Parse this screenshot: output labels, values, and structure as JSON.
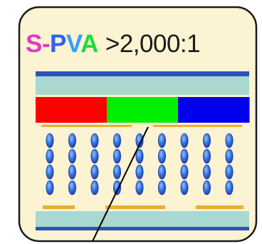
{
  "title": {
    "brand_chars": [
      {
        "char": "S",
        "color": "#e03cc0"
      },
      {
        "char": "-",
        "color": "#e03cc0"
      },
      {
        "char": "P",
        "color": "#2f63e8"
      },
      {
        "char": "V",
        "color": "#2fa0ff"
      },
      {
        "char": "A",
        "color": "#1fdc3a"
      }
    ],
    "ratio": ">2,000:1"
  },
  "colors": {
    "background": "#fcf3d3",
    "border": "#1a1a1a",
    "glass_band": "#a8d8d0",
    "stripe": "#2f52b8",
    "subpixel_red": "#ff0000",
    "subpixel_green": "#00ee00",
    "subpixel_blue": "#0000ee",
    "electrode": "#e8ae35",
    "molecule": "#2c6fe0",
    "ray": "#000000"
  },
  "subpixels": [
    "red",
    "green",
    "blue"
  ],
  "molecule_columns": 9,
  "molecules_per_column": 4
}
